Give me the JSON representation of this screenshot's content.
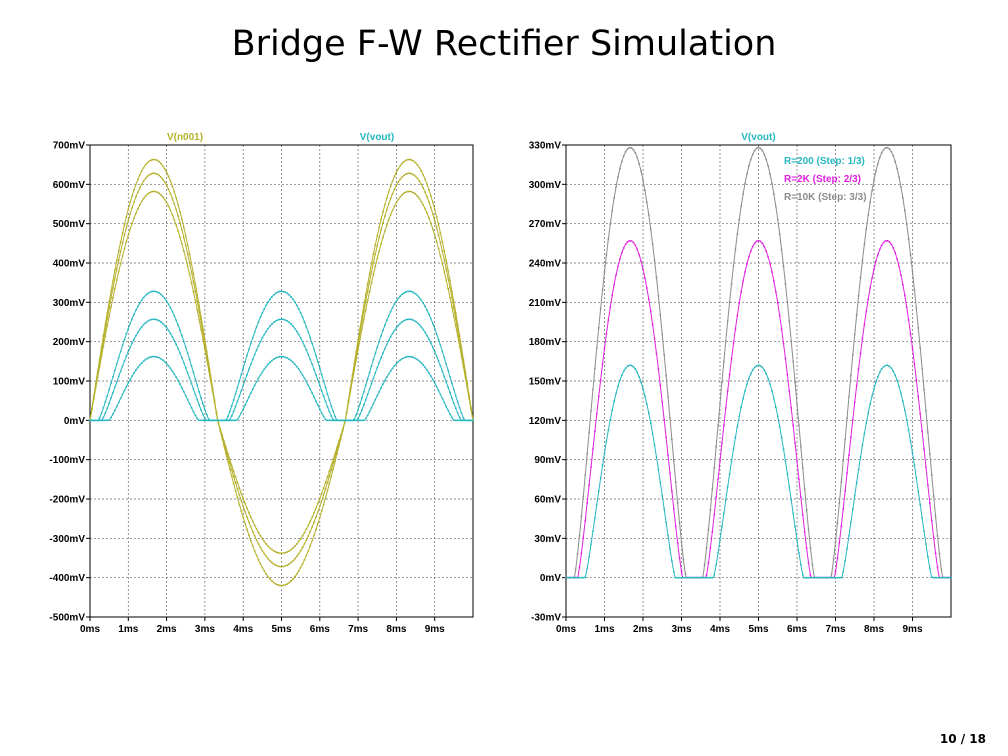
{
  "slide": {
    "title": "Bridge F-W Rectifier Simulation",
    "page": "10 / 18"
  },
  "colors": {
    "vin": "#b5b02a",
    "r200": "#26b7c1",
    "r2k": "#e020e0",
    "r10k": "#8c8c8c",
    "grid": "#666666"
  },
  "chart_data": [
    {
      "type": "line",
      "x_unit": "ms",
      "y_unit": "mV",
      "xlim": [
        0,
        10
      ],
      "ylim": [
        -500,
        700
      ],
      "x_ticks": [
        0,
        1,
        2,
        3,
        4,
        5,
        6,
        7,
        8,
        9
      ],
      "x_tick_labels": [
        "0ms",
        "1ms",
        "2ms",
        "3ms",
        "4ms",
        "5ms",
        "6ms",
        "7ms",
        "8ms",
        "9ms"
      ],
      "y_ticks": [
        700,
        600,
        500,
        400,
        300,
        200,
        100,
        0,
        -100,
        -200,
        -300,
        -400,
        -500
      ],
      "y_tick_labels": [
        "700mV",
        "600mV",
        "500mV",
        "400mV",
        "300mV",
        "200mV",
        "100mV",
        "0mV",
        "-100mV",
        "-200mV",
        "-300mV",
        "-400mV",
        "-500mV"
      ],
      "grid": true,
      "series_titles": [
        {
          "text": "V(n001)",
          "color": "vin"
        },
        {
          "text": "V(vout)",
          "color": "r200"
        }
      ],
      "series": [
        {
          "color": "vin",
          "kind": "input",
          "pos_peak": 663,
          "neg_peak": -420
        },
        {
          "color": "vin",
          "kind": "input",
          "pos_peak": 628,
          "neg_peak": -372
        },
        {
          "color": "vin",
          "kind": "input",
          "pos_peak": 582,
          "neg_peak": -338
        },
        {
          "color": "r200",
          "kind": "output",
          "peak": 162,
          "threshold": 0.45
        },
        {
          "color": "r200",
          "kind": "output",
          "peak": 257,
          "threshold": 0.28
        },
        {
          "color": "r200",
          "kind": "output",
          "peak": 328,
          "threshold": 0.2
        }
      ]
    },
    {
      "type": "line",
      "x_unit": "ms",
      "y_unit": "mV",
      "xlim": [
        0,
        10
      ],
      "ylim": [
        -30,
        330
      ],
      "x_ticks": [
        0,
        1,
        2,
        3,
        4,
        5,
        6,
        7,
        8,
        9
      ],
      "x_tick_labels": [
        "0ms",
        "1ms",
        "2ms",
        "3ms",
        "4ms",
        "5ms",
        "6ms",
        "7ms",
        "8ms",
        "9ms"
      ],
      "y_ticks": [
        330,
        300,
        270,
        240,
        210,
        180,
        150,
        120,
        90,
        60,
        30,
        0,
        -30
      ],
      "y_tick_labels": [
        "330mV",
        "300mV",
        "270mV",
        "240mV",
        "210mV",
        "180mV",
        "150mV",
        "120mV",
        "90mV",
        "60mV",
        "30mV",
        "0mV",
        "-30mV"
      ],
      "grid": true,
      "series_titles": [
        {
          "text": "V(vout)",
          "color": "r200"
        }
      ],
      "legend_position": "top-right",
      "legend": [
        {
          "text": "R=200  (Step: 1/3)",
          "color": "r200"
        },
        {
          "text": "R=2K  (Step: 2/3)",
          "color": "r2k"
        },
        {
          "text": "R=10K  (Step: 3/3)",
          "color": "r10k"
        }
      ],
      "series": [
        {
          "color": "r10k",
          "kind": "output",
          "peak": 328,
          "threshold": 0.2
        },
        {
          "color": "r2k",
          "kind": "output",
          "peak": 257,
          "threshold": 0.28
        },
        {
          "color": "r200",
          "kind": "output",
          "peak": 162,
          "threshold": 0.45
        }
      ]
    }
  ]
}
